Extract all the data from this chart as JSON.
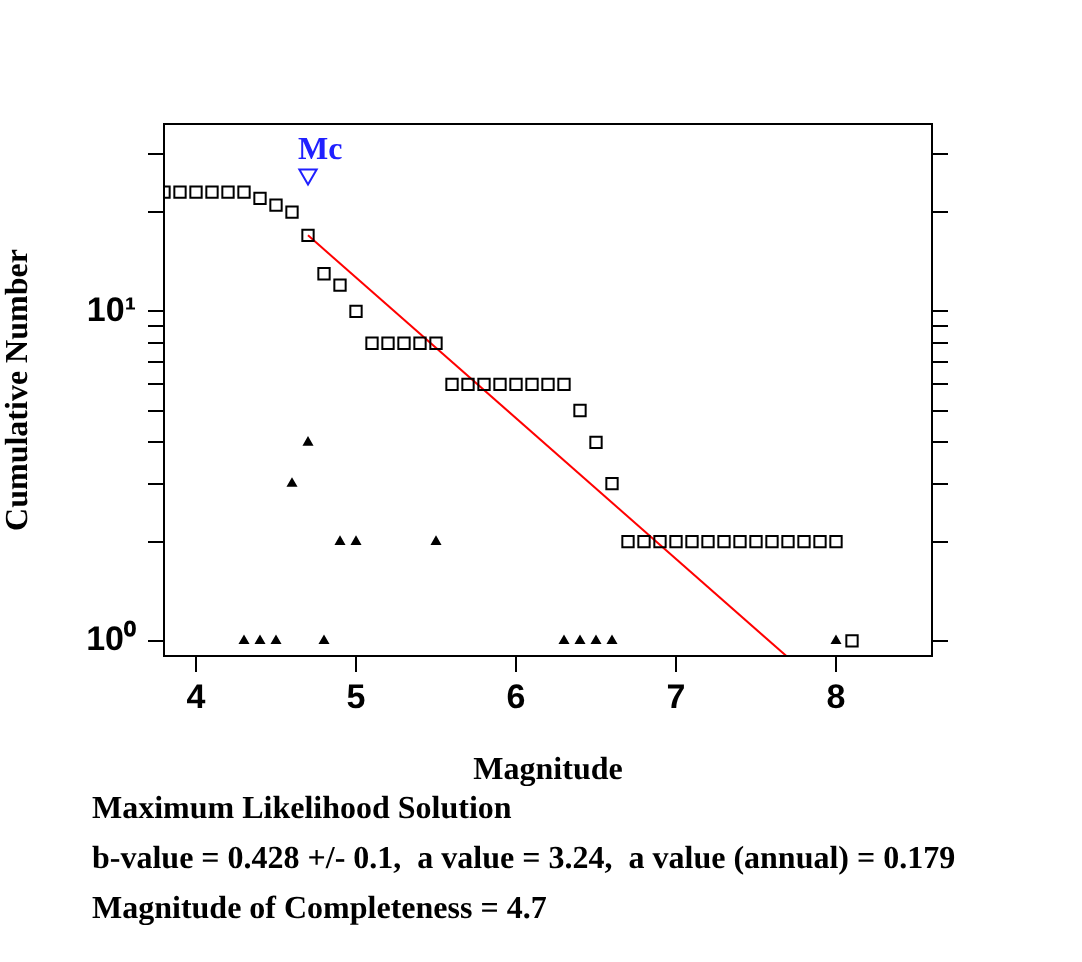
{
  "chart_data": {
    "type": "scatter",
    "xlabel": "Magnitude",
    "ylabel": "Cumulative Number",
    "log": "y",
    "grid": false,
    "legend": false,
    "xlim": [
      3.8,
      8.6
    ],
    "xticks": [
      4,
      5,
      6,
      7,
      8
    ],
    "ylim": [
      0.9,
      37
    ],
    "yticks": [
      {
        "value": 1,
        "label": "10⁰"
      },
      {
        "value": 2,
        "label": null
      },
      {
        "value": 3,
        "label": null
      },
      {
        "value": 4,
        "label": null
      },
      {
        "value": 5,
        "label": null
      },
      {
        "value": 6,
        "label": null
      },
      {
        "value": 7,
        "label": null
      },
      {
        "value": 8,
        "label": null
      },
      {
        "value": 9,
        "label": null
      },
      {
        "value": 10,
        "label": "10¹"
      },
      {
        "value": 20,
        "label": null
      },
      {
        "value": 30,
        "label": null
      }
    ],
    "series": [
      {
        "marker": "square",
        "color": "#000000",
        "x": [
          3.8,
          3.9,
          4.0,
          4.1,
          4.2,
          4.3,
          4.4,
          4.5,
          4.6,
          4.7,
          4.8,
          4.9,
          5.0,
          5.1,
          5.2,
          5.3,
          5.4,
          5.5,
          5.6,
          5.7,
          5.8,
          5.9,
          6.0,
          6.1,
          6.2,
          6.3,
          6.4,
          6.5,
          6.6,
          6.7,
          6.8,
          6.9,
          7.0,
          7.1,
          7.2,
          7.3,
          7.4,
          7.5,
          7.6,
          7.7,
          7.8,
          7.9,
          8.0,
          8.1
        ],
        "values": [
          23,
          23,
          23,
          23,
          23,
          23,
          22,
          21,
          20,
          17,
          13,
          12,
          10,
          8,
          8,
          8,
          8,
          8,
          6,
          6,
          6,
          6,
          6,
          6,
          6,
          6,
          5,
          4,
          3,
          2,
          2,
          2,
          2,
          2,
          2,
          2,
          2,
          2,
          2,
          2,
          2,
          2,
          2,
          1
        ]
      },
      {
        "marker": "triangle",
        "color": "#000000",
        "x": [
          4.3,
          4.4,
          4.5,
          4.6,
          4.7,
          4.8,
          4.9,
          5.0,
          5.5,
          6.3,
          6.4,
          6.5,
          6.6,
          8.0
        ],
        "values": [
          1,
          1,
          1,
          3,
          4,
          1,
          2,
          2,
          2,
          1,
          1,
          1,
          1,
          1
        ]
      },
      {
        "type": "line",
        "marker": "none",
        "color": "#ff0000",
        "x": [
          4.7,
          7.69
        ],
        "values": [
          17,
          0.9
        ]
      },
      {
        "name": "Mc",
        "marker": "triangle",
        "color": "#2020ff",
        "x": [
          4.7
        ],
        "values": [
          26
        ]
      }
    ],
    "annotations": [
      "Maximum Likelihood Solution",
      "b-value = 0.428 +/- 0.1,  a value = 3.24,  a value (annual) = 0.179",
      "Magnitude of Completeness = 4.7"
    ]
  }
}
